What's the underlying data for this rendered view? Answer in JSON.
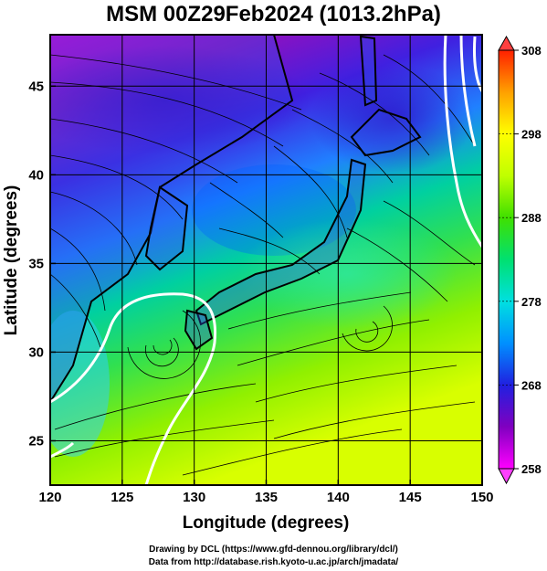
{
  "title": "MSM 00Z29Feb2024 (1013.2hPa)",
  "map": {
    "xlabel": "Longitude (degrees)",
    "ylabel": "Latitude  (degrees)",
    "lon_range": [
      120,
      150
    ],
    "lat_range": [
      22.5,
      47.9
    ],
    "lon_ticks": [
      {
        "v": 120,
        "t": "120"
      },
      {
        "v": 125,
        "t": "125"
      },
      {
        "v": 130,
        "t": "130"
      },
      {
        "v": 135,
        "t": "135"
      },
      {
        "v": 140,
        "t": "140"
      },
      {
        "v": 145,
        "t": "145"
      },
      {
        "v": 150,
        "t": "150"
      }
    ],
    "lat_ticks": [
      {
        "v": 25,
        "t": "25"
      },
      {
        "v": 30,
        "t": "30"
      },
      {
        "v": 35,
        "t": "35"
      },
      {
        "v": 40,
        "t": "40"
      },
      {
        "v": 45,
        "t": "45"
      }
    ],
    "grid": true,
    "field": "temperature",
    "streamlines": "wind",
    "contour_color": "#ffffff"
  },
  "colorbar": {
    "min": 258,
    "max": 308,
    "labels": [
      {
        "v": 308,
        "t": "308"
      },
      {
        "v": 298,
        "t": "298"
      },
      {
        "v": 288,
        "t": "288"
      },
      {
        "v": 278,
        "t": "278"
      },
      {
        "v": 268,
        "t": "268"
      },
      {
        "v": 258,
        "t": "258"
      }
    ],
    "colors": [
      "#ff00ff",
      "#8000c0",
      "#2020e0",
      "#0090ff",
      "#00e0e0",
      "#00e070",
      "#40e000",
      "#c0ff00",
      "#ffff00",
      "#ffa000",
      "#ff2000"
    ]
  },
  "credits": {
    "line1": "Drawing by DCL (https://www.gfd-dennou.org/library/dcl/)",
    "line2": "Data from http://database.rish.kyoto-u.ac.jp/arch/jmadata/"
  }
}
